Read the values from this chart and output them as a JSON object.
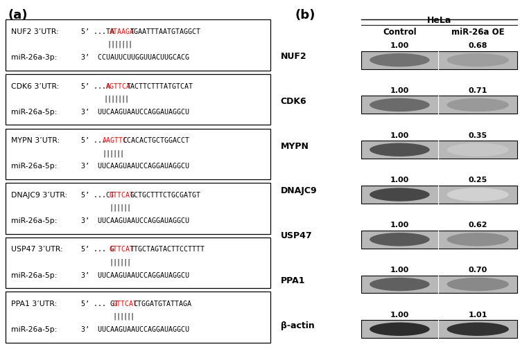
{
  "panel_a_label": "(a)",
  "panel_b_label": "(b)",
  "sequences": [
    {
      "gene": "NUF2",
      "utr_label": "NUF2 3’UTR:",
      "mir_label": "miR-26a-3p:",
      "utr_prefix": "5’ ...TA",
      "utr_red": "ATAAGA",
      "utr_suffix": "TGAATTTAATGTAGGCT",
      "mir_line": "3’  CCUAUUCUUGGUUACUUGCACG",
      "n_bars": 7
    },
    {
      "gene": "CDK6",
      "utr_label": "CDK6 3’UTR:",
      "mir_label": "miR-26a-5p:",
      "utr_prefix": "5’ ...A",
      "utr_red": "AGTTCA",
      "utr_suffix": "TACTTCTTTATGTCAT",
      "mir_line": "3’  UUCAAGUAAUCCAGGAUAGGCU",
      "n_bars": 7
    },
    {
      "gene": "MYPN",
      "utr_label": "MYPN 3’UTR:",
      "mir_label": "miR-26a-5p:",
      "utr_prefix": "5’ ...",
      "utr_red": "AAGTTC",
      "utr_suffix": "CCACACTGCTGGACCT",
      "mir_line": "3’  UUCAAGUAAUCCAGGAUAGGCU",
      "n_bars": 6
    },
    {
      "gene": "DNAJC9",
      "utr_label": "DNAJC9 3’UTR:",
      "mir_label": "miR-26a-5p:",
      "utr_prefix": "5’ ...CT",
      "utr_red": "GTTCAT",
      "utr_suffix": "GCTGCTTTCTGCGATGT",
      "mir_line": "3’  UUCAAGUAAUCCAGGAUAGGCU",
      "n_bars": 6
    },
    {
      "gene": "USP47",
      "utr_label": "USP47 3’UTR:",
      "mir_label": "miR-26a-5p:",
      "utr_prefix": "5’ ... G",
      "utr_red": "GTTCAT",
      "utr_suffix": "TTGCTAGTACTTCCTTTT",
      "mir_line": "3’  UUCAAGUAAUCCAGGAUAGGCU",
      "n_bars": 6
    },
    {
      "gene": "PPA1",
      "utr_label": "PPA1 3’UTR:",
      "mir_label": "miR-26a-5p:",
      "utr_prefix": "5’ ... GT",
      "utr_red": "GTTCAT",
      "utr_suffix": "CTGGATGTATTAGA",
      "mir_line": "3’  UUCAAGUAAUCCAGGAUAGGCU",
      "n_bars": 6
    }
  ],
  "western_blot": {
    "hela_label": "HeLa",
    "control_label": "Control",
    "mir_label": "miR-26a OE",
    "proteins": [
      "NUF2",
      "CDK6",
      "MYPN",
      "DNAJC9",
      "USP47",
      "PPA1",
      "β-actin"
    ],
    "control_values": [
      1.0,
      1.0,
      1.0,
      1.0,
      1.0,
      1.0,
      1.0
    ],
    "oe_values": [
      0.68,
      0.71,
      0.35,
      0.25,
      0.62,
      0.7,
      1.01
    ],
    "control_intensities": [
      0.55,
      0.58,
      0.68,
      0.72,
      0.65,
      0.62,
      0.82
    ],
    "oe_intensities": [
      0.38,
      0.4,
      0.22,
      0.18,
      0.44,
      0.46,
      0.8
    ]
  },
  "bg_color": "#ffffff",
  "box_color": "#000000",
  "text_color": "#000000",
  "red_color": "#ff0000"
}
